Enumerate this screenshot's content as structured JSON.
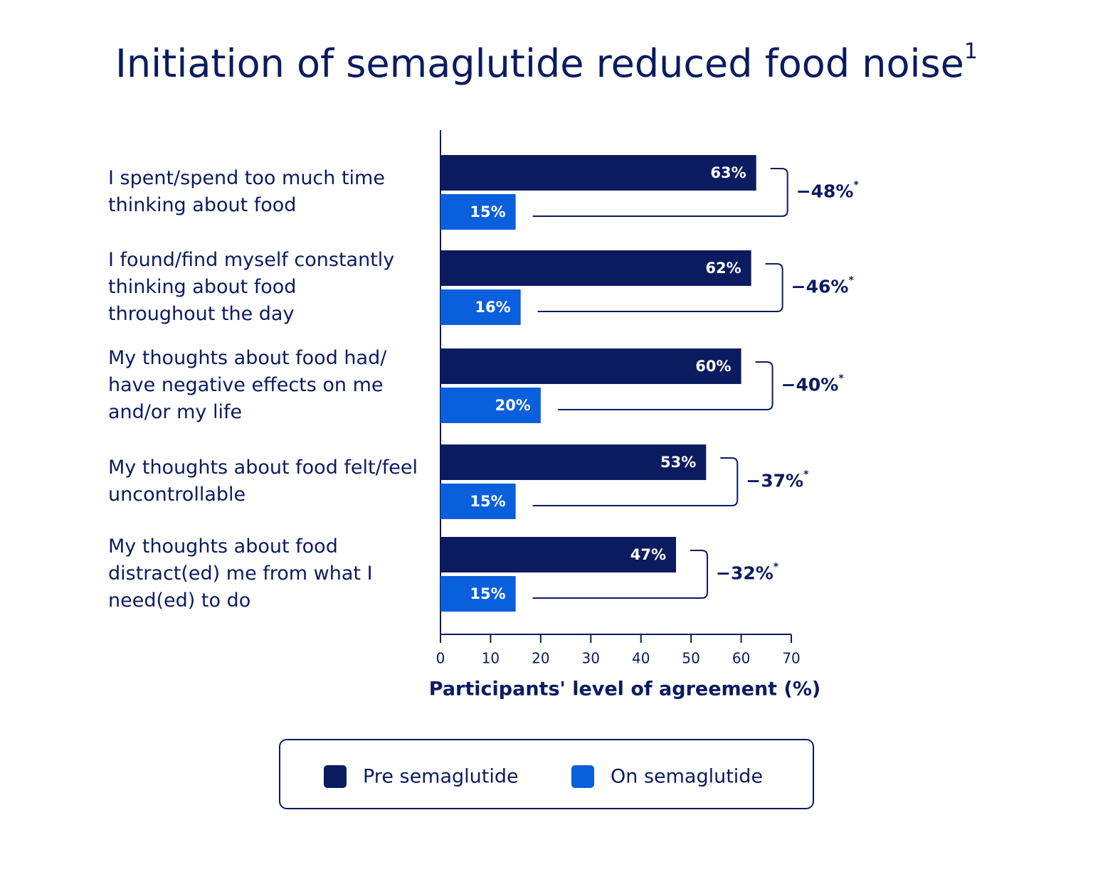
{
  "chart_data": {
    "type": "bar",
    "orientation": "horizontal",
    "title": "Initiation of semaglutide reduced food noise",
    "title_footnote": "1",
    "categories": [
      [
        "I spent/spend too much time",
        "thinking about food"
      ],
      [
        "I found/find myself constantly",
        "thinking about food",
        "throughout the day"
      ],
      [
        "My thoughts about food had/",
        "have negative effects on me",
        "and/or my life"
      ],
      [
        "My thoughts about food felt/feel",
        "uncontrollable"
      ],
      [
        "My thoughts about food",
        "distract(ed) me from what I",
        "need(ed) to do"
      ]
    ],
    "series": [
      {
        "name": "Pre semaglutide",
        "color": "#0b1b5f",
        "values": [
          63,
          62,
          60,
          53,
          47
        ],
        "value_labels": [
          "63%",
          "62%",
          "60%",
          "53%",
          "47%"
        ]
      },
      {
        "name": "On semaglutide",
        "color": "#0a5fdc",
        "values": [
          15,
          16,
          20,
          15,
          15
        ],
        "value_labels": [
          "15%",
          "16%",
          "20%",
          "15%",
          "15%"
        ]
      }
    ],
    "annotations": [
      {
        "text": "−48%",
        "note": "*"
      },
      {
        "text": "−46%",
        "note": "*"
      },
      {
        "text": "−40%",
        "note": "*"
      },
      {
        "text": "−37%",
        "note": "*"
      },
      {
        "text": "−32%",
        "note": "*"
      }
    ],
    "xlabel": "Participants' level of agreement (%)",
    "xlim": [
      0,
      70
    ],
    "xticks": [
      0,
      10,
      20,
      30,
      40,
      50,
      60,
      70
    ],
    "legend": "bottom"
  }
}
